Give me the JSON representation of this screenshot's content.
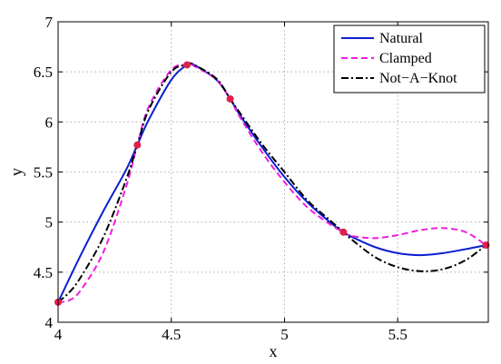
{
  "chart_data": {
    "type": "line",
    "title": "",
    "xlabel": "x",
    "ylabel": "y",
    "xlim": [
      4,
      5.9
    ],
    "ylim": [
      4,
      7
    ],
    "x_ticks": [
      "4",
      "4.5",
      "5",
      "5.5"
    ],
    "y_ticks": [
      "4",
      "4.5",
      "5",
      "5.5",
      "6",
      "6.5",
      "7"
    ],
    "grid": true,
    "legend_position": "top-right",
    "points": {
      "x": [
        4.0,
        4.35,
        4.57,
        4.76,
        5.26,
        5.89
      ],
      "y": [
        4.2,
        5.77,
        6.57,
        6.23,
        4.9,
        4.77
      ],
      "color": "#e0204a"
    },
    "series": [
      {
        "name": "Natural",
        "color": "#0b1fd0",
        "dash": "solid",
        "x": [
          4.0,
          4.1,
          4.2,
          4.3,
          4.35,
          4.4,
          4.5,
          4.57,
          4.6,
          4.7,
          4.76,
          4.8,
          4.9,
          5.0,
          5.1,
          5.2,
          5.26,
          5.3,
          5.4,
          5.5,
          5.6,
          5.7,
          5.8,
          5.89
        ],
        "y": [
          4.2,
          4.67,
          5.11,
          5.52,
          5.77,
          6.02,
          6.42,
          6.57,
          6.57,
          6.42,
          6.23,
          6.08,
          5.75,
          5.45,
          5.2,
          5.0,
          4.9,
          4.85,
          4.75,
          4.69,
          4.67,
          4.69,
          4.73,
          4.77
        ]
      },
      {
        "name": "Clamped",
        "color": "#ee1ee0",
        "dash": "dashed",
        "x": [
          4.0,
          4.05,
          4.1,
          4.2,
          4.3,
          4.35,
          4.4,
          4.5,
          4.57,
          4.6,
          4.7,
          4.76,
          4.8,
          4.9,
          5.0,
          5.1,
          5.2,
          5.26,
          5.3,
          5.4,
          5.5,
          5.6,
          5.7,
          5.8,
          5.89
        ],
        "y": [
          4.2,
          4.22,
          4.32,
          4.7,
          5.35,
          5.77,
          6.15,
          6.52,
          6.57,
          6.56,
          6.42,
          6.23,
          6.06,
          5.7,
          5.4,
          5.15,
          4.98,
          4.9,
          4.86,
          4.84,
          4.87,
          4.92,
          4.94,
          4.9,
          4.77
        ]
      },
      {
        "name": "Not−A−Knot",
        "color": "#000000",
        "dash": "dashdot",
        "x": [
          4.0,
          4.05,
          4.1,
          4.2,
          4.3,
          4.35,
          4.4,
          4.5,
          4.57,
          4.6,
          4.7,
          4.76,
          4.8,
          4.9,
          5.0,
          5.1,
          5.2,
          5.26,
          5.3,
          5.4,
          5.5,
          5.6,
          5.7,
          5.8,
          5.89
        ],
        "y": [
          4.2,
          4.3,
          4.45,
          4.85,
          5.42,
          5.77,
          6.12,
          6.5,
          6.57,
          6.57,
          6.43,
          6.23,
          6.1,
          5.78,
          5.5,
          5.22,
          5.02,
          4.9,
          4.82,
          4.65,
          4.55,
          4.51,
          4.53,
          4.62,
          4.77
        ]
      }
    ]
  }
}
